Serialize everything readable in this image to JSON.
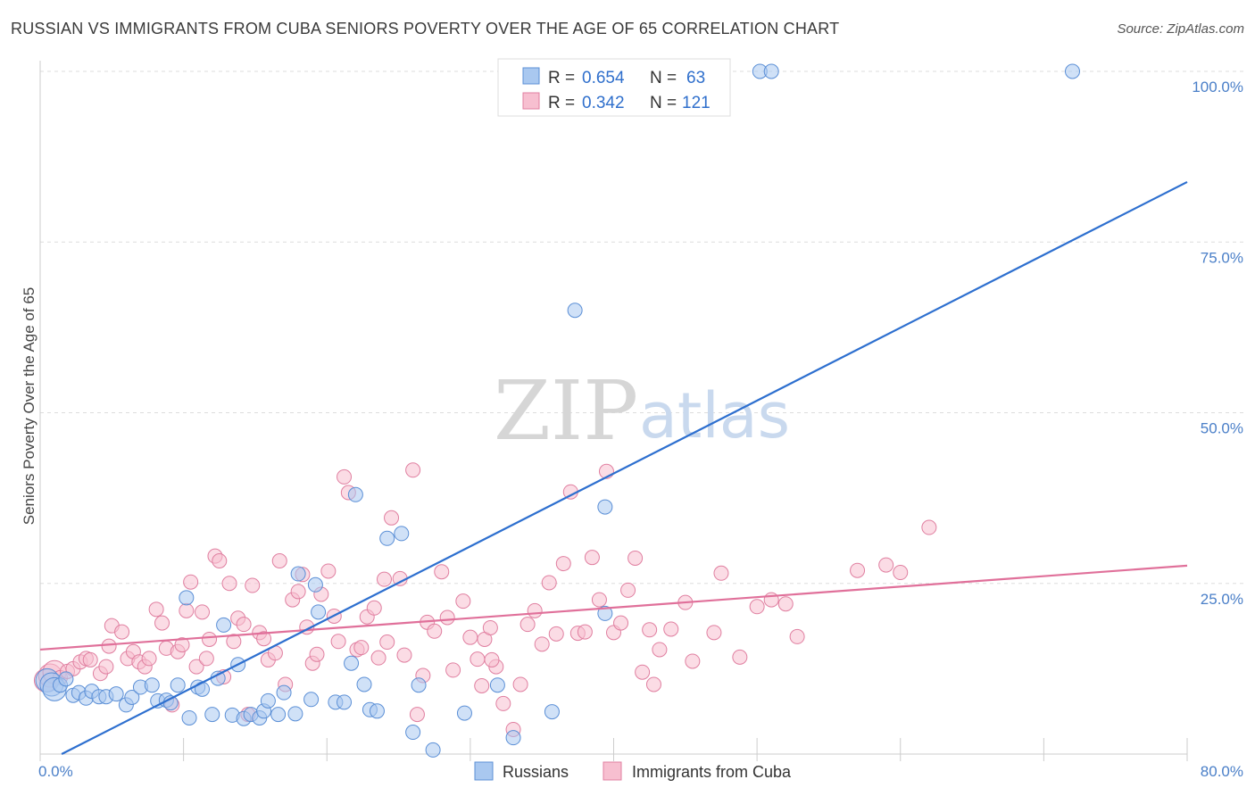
{
  "title": "RUSSIAN VS IMMIGRANTS FROM CUBA SENIORS POVERTY OVER THE AGE OF 65 CORRELATION CHART",
  "source": "Source: ZipAtlas.com",
  "watermark": {
    "zip": "ZIP",
    "atlas": "atlas"
  },
  "colors": {
    "blue_fill": "#a9c8f0",
    "blue_stroke": "#5b8fd6",
    "blue_line": "#2d6fcf",
    "pink_fill": "#f7bfd0",
    "pink_stroke": "#e07fa0",
    "pink_line": "#e0709a",
    "grid": "#dddddd",
    "tick_text": "#4a7fc8"
  },
  "legend": {
    "rows": [
      {
        "r_label": "R = ",
        "r_value": "0.654",
        "n_label": "N = ",
        "n_value": "63"
      },
      {
        "r_label": "R = ",
        "r_value": "0.342",
        "n_label": "N = ",
        "n_value": "121"
      }
    ]
  },
  "chart_data": {
    "type": "scatter",
    "title": "RUSSIAN VS IMMIGRANTS FROM CUBA SENIORS POVERTY OVER THE AGE OF 65 CORRELATION CHART",
    "xlabel": "",
    "ylabel": "Seniors Poverty Over the Age of 65",
    "xlim": [
      0,
      80
    ],
    "ylim": [
      0,
      100
    ],
    "x_tick_labels": [
      "0.0%",
      "80.0%"
    ],
    "y_ticks": [
      25,
      50,
      75,
      100
    ],
    "y_tick_labels": [
      "25.0%",
      "50.0%",
      "75.0%",
      "100.0%"
    ],
    "grid": true,
    "legend_position": "top-center",
    "series": [
      {
        "name": "Russians",
        "trend": {
          "x": [
            1.5,
            80
          ],
          "y": [
            0,
            83.8
          ]
        },
        "points": [
          [
            0.5,
            10.8
          ],
          [
            0.8,
            10.2
          ],
          [
            1.0,
            9.5
          ],
          [
            1.4,
            10.1
          ],
          [
            1.8,
            11.0
          ],
          [
            2.3,
            8.6
          ],
          [
            2.7,
            9.0
          ],
          [
            3.2,
            8.2
          ],
          [
            3.6,
            9.2
          ],
          [
            4.1,
            8.4
          ],
          [
            4.6,
            8.4
          ],
          [
            5.3,
            8.8
          ],
          [
            6.0,
            7.2
          ],
          [
            6.4,
            8.3
          ],
          [
            7.0,
            9.8
          ],
          [
            7.8,
            10.1
          ],
          [
            8.2,
            7.8
          ],
          [
            8.8,
            7.9
          ],
          [
            9.1,
            7.5
          ],
          [
            9.6,
            10.1
          ],
          [
            10.2,
            22.9
          ],
          [
            10.4,
            5.3
          ],
          [
            11.0,
            9.8
          ],
          [
            11.3,
            9.5
          ],
          [
            12.0,
            5.8
          ],
          [
            12.4,
            11.1
          ],
          [
            12.8,
            18.9
          ],
          [
            13.4,
            5.7
          ],
          [
            13.8,
            13.1
          ],
          [
            14.2,
            5.2
          ],
          [
            14.7,
            5.8
          ],
          [
            15.3,
            5.3
          ],
          [
            15.6,
            6.3
          ],
          [
            15.9,
            7.8
          ],
          [
            16.6,
            5.8
          ],
          [
            17.0,
            9.0
          ],
          [
            17.8,
            5.9
          ],
          [
            18.0,
            26.4
          ],
          [
            18.9,
            8.0
          ],
          [
            19.2,
            24.8
          ],
          [
            19.4,
            20.8
          ],
          [
            20.6,
            7.6
          ],
          [
            21.2,
            7.6
          ],
          [
            21.7,
            13.3
          ],
          [
            22.0,
            38.0
          ],
          [
            22.6,
            10.2
          ],
          [
            23.0,
            6.5
          ],
          [
            23.5,
            6.3
          ],
          [
            24.2,
            31.6
          ],
          [
            25.2,
            32.3
          ],
          [
            26.0,
            3.2
          ],
          [
            27.4,
            0.6
          ],
          [
            29.6,
            6.0
          ],
          [
            31.9,
            10.1
          ],
          [
            33.0,
            2.4
          ],
          [
            35.7,
            6.2
          ],
          [
            37.3,
            65.0
          ],
          [
            39.4,
            36.2
          ],
          [
            39.4,
            20.6
          ],
          [
            50.2,
            100.0
          ],
          [
            51.0,
            100.0
          ],
          [
            72.0,
            100.0
          ],
          [
            26.4,
            10.1
          ]
        ]
      },
      {
        "name": "Immigrants from Cuba",
        "trend": {
          "x": [
            0,
            80
          ],
          "y": [
            15.3,
            27.6
          ]
        },
        "points": [
          [
            0.4,
            10.8
          ],
          [
            0.7,
            11.5
          ],
          [
            1.0,
            12.0
          ],
          [
            1.4,
            11.2
          ],
          [
            1.9,
            12.1
          ],
          [
            2.3,
            12.5
          ],
          [
            2.8,
            13.5
          ],
          [
            3.2,
            14.0
          ],
          [
            3.5,
            13.8
          ],
          [
            4.2,
            11.8
          ],
          [
            4.6,
            12.8
          ],
          [
            4.8,
            15.8
          ],
          [
            5.0,
            18.8
          ],
          [
            5.7,
            17.9
          ],
          [
            6.1,
            14.0
          ],
          [
            6.5,
            15.0
          ],
          [
            6.9,
            13.5
          ],
          [
            7.3,
            12.8
          ],
          [
            7.6,
            14.0
          ],
          [
            8.1,
            21.2
          ],
          [
            8.5,
            19.2
          ],
          [
            8.8,
            15.5
          ],
          [
            9.2,
            7.2
          ],
          [
            9.6,
            15.0
          ],
          [
            9.9,
            16.0
          ],
          [
            10.2,
            21.0
          ],
          [
            10.5,
            25.2
          ],
          [
            10.9,
            12.8
          ],
          [
            11.3,
            20.8
          ],
          [
            11.6,
            14.0
          ],
          [
            11.8,
            16.8
          ],
          [
            12.2,
            29.0
          ],
          [
            12.5,
            28.3
          ],
          [
            12.8,
            11.3
          ],
          [
            13.2,
            25.0
          ],
          [
            13.5,
            16.5
          ],
          [
            13.8,
            19.9
          ],
          [
            14.2,
            19.0
          ],
          [
            14.5,
            5.8
          ],
          [
            14.8,
            24.7
          ],
          [
            15.3,
            17.8
          ],
          [
            15.6,
            16.9
          ],
          [
            15.9,
            13.8
          ],
          [
            16.4,
            14.8
          ],
          [
            16.7,
            28.3
          ],
          [
            17.1,
            10.2
          ],
          [
            17.6,
            22.6
          ],
          [
            18.0,
            23.8
          ],
          [
            18.3,
            26.3
          ],
          [
            18.6,
            18.6
          ],
          [
            19.0,
            13.3
          ],
          [
            19.3,
            14.6
          ],
          [
            19.6,
            23.4
          ],
          [
            20.1,
            26.8
          ],
          [
            20.5,
            20.2
          ],
          [
            20.8,
            16.5
          ],
          [
            21.2,
            40.6
          ],
          [
            21.5,
            38.3
          ],
          [
            22.1,
            15.3
          ],
          [
            22.4,
            15.6
          ],
          [
            22.8,
            20.1
          ],
          [
            23.3,
            21.4
          ],
          [
            23.6,
            14.1
          ],
          [
            24.0,
            25.6
          ],
          [
            24.2,
            16.4
          ],
          [
            24.5,
            34.6
          ],
          [
            25.1,
            25.7
          ],
          [
            25.4,
            14.5
          ],
          [
            26.0,
            41.6
          ],
          [
            26.3,
            5.8
          ],
          [
            26.7,
            11.5
          ],
          [
            27.0,
            19.3
          ],
          [
            27.5,
            18.0
          ],
          [
            28.0,
            26.7
          ],
          [
            28.4,
            20.0
          ],
          [
            28.8,
            12.3
          ],
          [
            29.5,
            22.4
          ],
          [
            30.0,
            17.1
          ],
          [
            30.5,
            13.9
          ],
          [
            31.0,
            16.8
          ],
          [
            31.4,
            18.5
          ],
          [
            31.8,
            12.8
          ],
          [
            32.3,
            7.4
          ],
          [
            33.0,
            3.6
          ],
          [
            33.5,
            10.2
          ],
          [
            34.0,
            19.0
          ],
          [
            34.5,
            21.0
          ],
          [
            35.0,
            16.1
          ],
          [
            35.5,
            25.1
          ],
          [
            36.0,
            17.6
          ],
          [
            36.5,
            27.9
          ],
          [
            37.0,
            38.4
          ],
          [
            37.5,
            17.7
          ],
          [
            38.0,
            17.9
          ],
          [
            38.5,
            28.8
          ],
          [
            39.0,
            22.6
          ],
          [
            39.5,
            41.4
          ],
          [
            40.0,
            17.8
          ],
          [
            40.5,
            19.2
          ],
          [
            41.0,
            24.0
          ],
          [
            41.5,
            28.7
          ],
          [
            42.0,
            12.0
          ],
          [
            42.5,
            18.2
          ],
          [
            43.2,
            15.3
          ],
          [
            44.0,
            18.3
          ],
          [
            45.0,
            22.2
          ],
          [
            45.5,
            13.6
          ],
          [
            47.0,
            17.8
          ],
          [
            47.5,
            26.5
          ],
          [
            48.8,
            14.2
          ],
          [
            50.0,
            21.6
          ],
          [
            51.0,
            22.6
          ],
          [
            52.0,
            22.0
          ],
          [
            52.8,
            17.2
          ],
          [
            57.0,
            26.9
          ],
          [
            59.0,
            27.7
          ],
          [
            60.0,
            26.6
          ],
          [
            62.0,
            33.2
          ],
          [
            42.8,
            10.2
          ],
          [
            30.8,
            10.0
          ],
          [
            31.5,
            13.8
          ]
        ]
      }
    ]
  },
  "bottom_legend": [
    "Russians",
    "Immigrants from Cuba"
  ]
}
